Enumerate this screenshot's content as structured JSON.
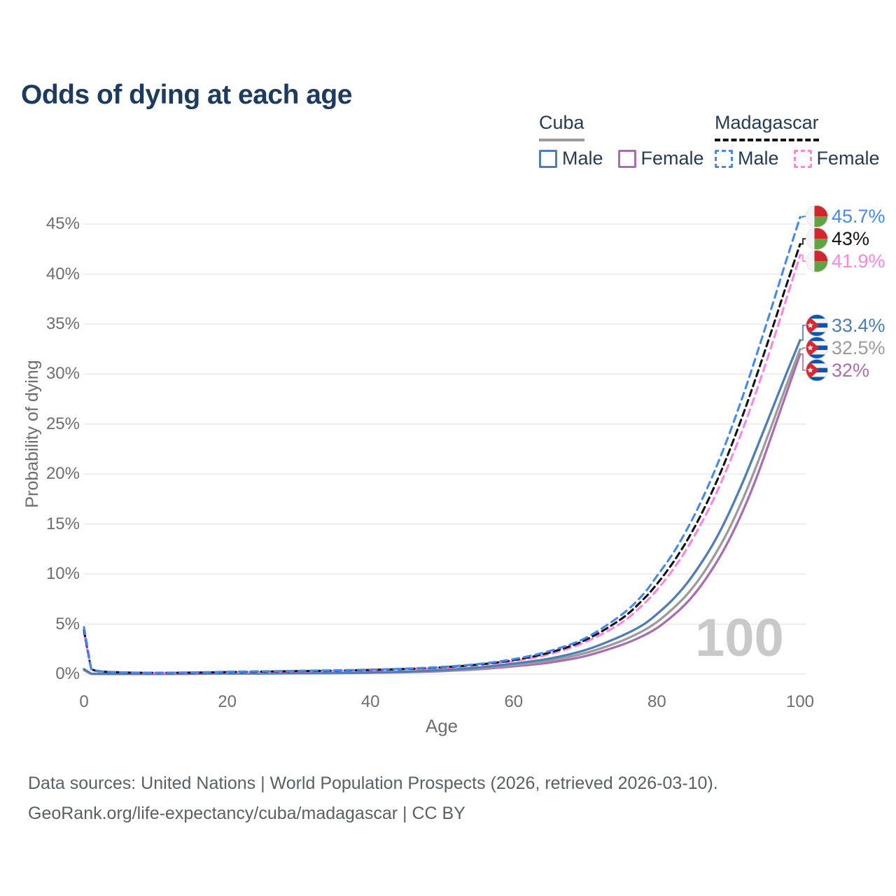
{
  "title": "Odds of dying at each age",
  "watermark_age": "100",
  "legend": {
    "cuba": {
      "label": "Cuba",
      "male": "Male",
      "female": "Female"
    },
    "madagascar": {
      "label": "Madagascar",
      "male": "Male",
      "female": "Female"
    }
  },
  "footer": {
    "line1": "Data sources: United Nations | World Population Prospects (2026, retrieved 2026-03-10).",
    "line2": "GeoRank.org/life-expectancy/cuba/madagascar | CC BY"
  },
  "colors": {
    "title": "#1d3a5f",
    "legend_text": "#253c52",
    "axis_text": "#6e6e6e",
    "grid": "#e9e9e9",
    "watermark": "#c9c9c9",
    "footer_text": "#596066",
    "cuba_male": "#4f7db5",
    "cuba_female": "#ab6db2",
    "cuba_overall": "#9b9b9b",
    "madagascar_male": "#4589f0",
    "madagascar_female": "#fa85e3",
    "madagascar_overall": "#141414",
    "flag_cuba_blue": "#1056a8",
    "flag_cuba_red": "#d42a35",
    "flag_madagascar_red": "#d02630",
    "flag_madagascar_green": "#61a343"
  },
  "icons": {
    "cuba_flag": "cuba-flag-icon",
    "madagascar_flag": "madagascar-flag-icon"
  },
  "chart_data": {
    "type": "line",
    "title": "Odds of dying at each age",
    "xlabel": "Age",
    "ylabel": "Probability of dying",
    "xlim": [
      0,
      100
    ],
    "ylim_percent": [
      0,
      46
    ],
    "grid": "horizontal",
    "legend_position": "top-right",
    "xticks": [
      0,
      20,
      40,
      60,
      80,
      100
    ],
    "xtick_labels": [
      "0",
      "20",
      "40",
      "60",
      "80",
      "100"
    ],
    "yticks_percent": [
      0,
      5,
      10,
      15,
      20,
      25,
      30,
      35,
      40,
      45
    ],
    "ytick_labels": [
      "0%",
      "5%",
      "10%",
      "15%",
      "20%",
      "25%",
      "30%",
      "35%",
      "40%",
      "45%"
    ],
    "ages": [
      0,
      1,
      5,
      10,
      15,
      20,
      25,
      30,
      35,
      40,
      45,
      50,
      55,
      60,
      65,
      70,
      75,
      78,
      80,
      82,
      84,
      86,
      88,
      90,
      92,
      94,
      96,
      98,
      100
    ],
    "series": [
      {
        "id": "cuba_female",
        "country": "Cuba",
        "sex": "Female",
        "style": "solid",
        "color_key": "cuba_female",
        "flag": "cuba",
        "in_legend": true,
        "end_label": "32%",
        "end_value_percent": 32.0,
        "values_percent": [
          0.4,
          0.03,
          0.015,
          0.015,
          0.03,
          0.04,
          0.05,
          0.07,
          0.09,
          0.13,
          0.19,
          0.3,
          0.48,
          0.78,
          1.15,
          1.8,
          2.9,
          3.8,
          4.6,
          5.7,
          7.0,
          8.7,
          10.8,
          13.3,
          16.3,
          19.8,
          23.8,
          27.9,
          32.0
        ]
      },
      {
        "id": "cuba_overall",
        "country": "Cuba",
        "sex": "Both",
        "style": "solid",
        "color_key": "cuba_overall",
        "flag": "cuba",
        "in_legend": false,
        "end_label": "32.5%",
        "end_value_percent": 32.5,
        "values_percent": [
          0.45,
          0.04,
          0.02,
          0.02,
          0.04,
          0.06,
          0.07,
          0.09,
          0.11,
          0.15,
          0.22,
          0.35,
          0.55,
          0.9,
          1.35,
          2.1,
          3.3,
          4.3,
          5.2,
          6.4,
          7.8,
          9.6,
          11.8,
          14.4,
          17.5,
          21.0,
          24.8,
          28.7,
          32.5
        ]
      },
      {
        "id": "cuba_male",
        "country": "Cuba",
        "sex": "Male",
        "style": "solid",
        "color_key": "cuba_male",
        "flag": "cuba",
        "in_legend": true,
        "end_label": "33.4%",
        "end_value_percent": 33.4,
        "values_percent": [
          0.5,
          0.04,
          0.02,
          0.02,
          0.05,
          0.08,
          0.09,
          0.11,
          0.13,
          0.17,
          0.25,
          0.4,
          0.65,
          1.05,
          1.55,
          2.4,
          3.8,
          4.9,
          6.0,
          7.3,
          8.9,
          10.9,
          13.2,
          16.0,
          19.2,
          22.7,
          26.3,
          29.9,
          33.4
        ]
      },
      {
        "id": "madagascar_female",
        "country": "Madagascar",
        "sex": "Female",
        "style": "dashed",
        "color_key": "madagascar_female",
        "flag": "madagascar",
        "in_legend": true,
        "end_label": "41.9%",
        "end_value_percent": 41.9,
        "values_percent": [
          4.1,
          0.48,
          0.16,
          0.12,
          0.13,
          0.17,
          0.21,
          0.26,
          0.31,
          0.38,
          0.48,
          0.63,
          0.9,
          1.3,
          2.0,
          3.2,
          5.1,
          6.9,
          8.4,
          10.2,
          12.3,
          14.8,
          17.6,
          20.9,
          24.5,
          28.5,
          32.8,
          37.3,
          41.9
        ]
      },
      {
        "id": "madagascar_overall",
        "country": "Madagascar",
        "sex": "Both",
        "style": "dashed",
        "color_key": "madagascar_overall",
        "flag": "madagascar",
        "in_legend": false,
        "end_label": "43%",
        "end_value_percent": 43.0,
        "values_percent": [
          4.4,
          0.52,
          0.17,
          0.13,
          0.15,
          0.2,
          0.25,
          0.3,
          0.35,
          0.42,
          0.52,
          0.68,
          0.95,
          1.4,
          2.15,
          3.4,
          5.5,
          7.4,
          9.0,
          10.9,
          13.1,
          15.7,
          18.7,
          22.1,
          25.9,
          30.0,
          34.3,
          38.7,
          43.0
        ]
      },
      {
        "id": "madagascar_male",
        "country": "Madagascar",
        "sex": "Male",
        "style": "dashed",
        "color_key": "madagascar_male",
        "flag": "madagascar",
        "in_legend": true,
        "end_label": "45.7%",
        "end_value_percent": 45.7,
        "values_percent": [
          4.7,
          0.55,
          0.18,
          0.14,
          0.17,
          0.23,
          0.28,
          0.33,
          0.38,
          0.45,
          0.55,
          0.72,
          1.0,
          1.5,
          2.3,
          3.6,
          5.9,
          7.9,
          9.8,
          11.8,
          14.2,
          17.0,
          20.2,
          23.8,
          27.8,
          32.1,
          36.6,
          41.2,
          45.7
        ]
      }
    ]
  }
}
